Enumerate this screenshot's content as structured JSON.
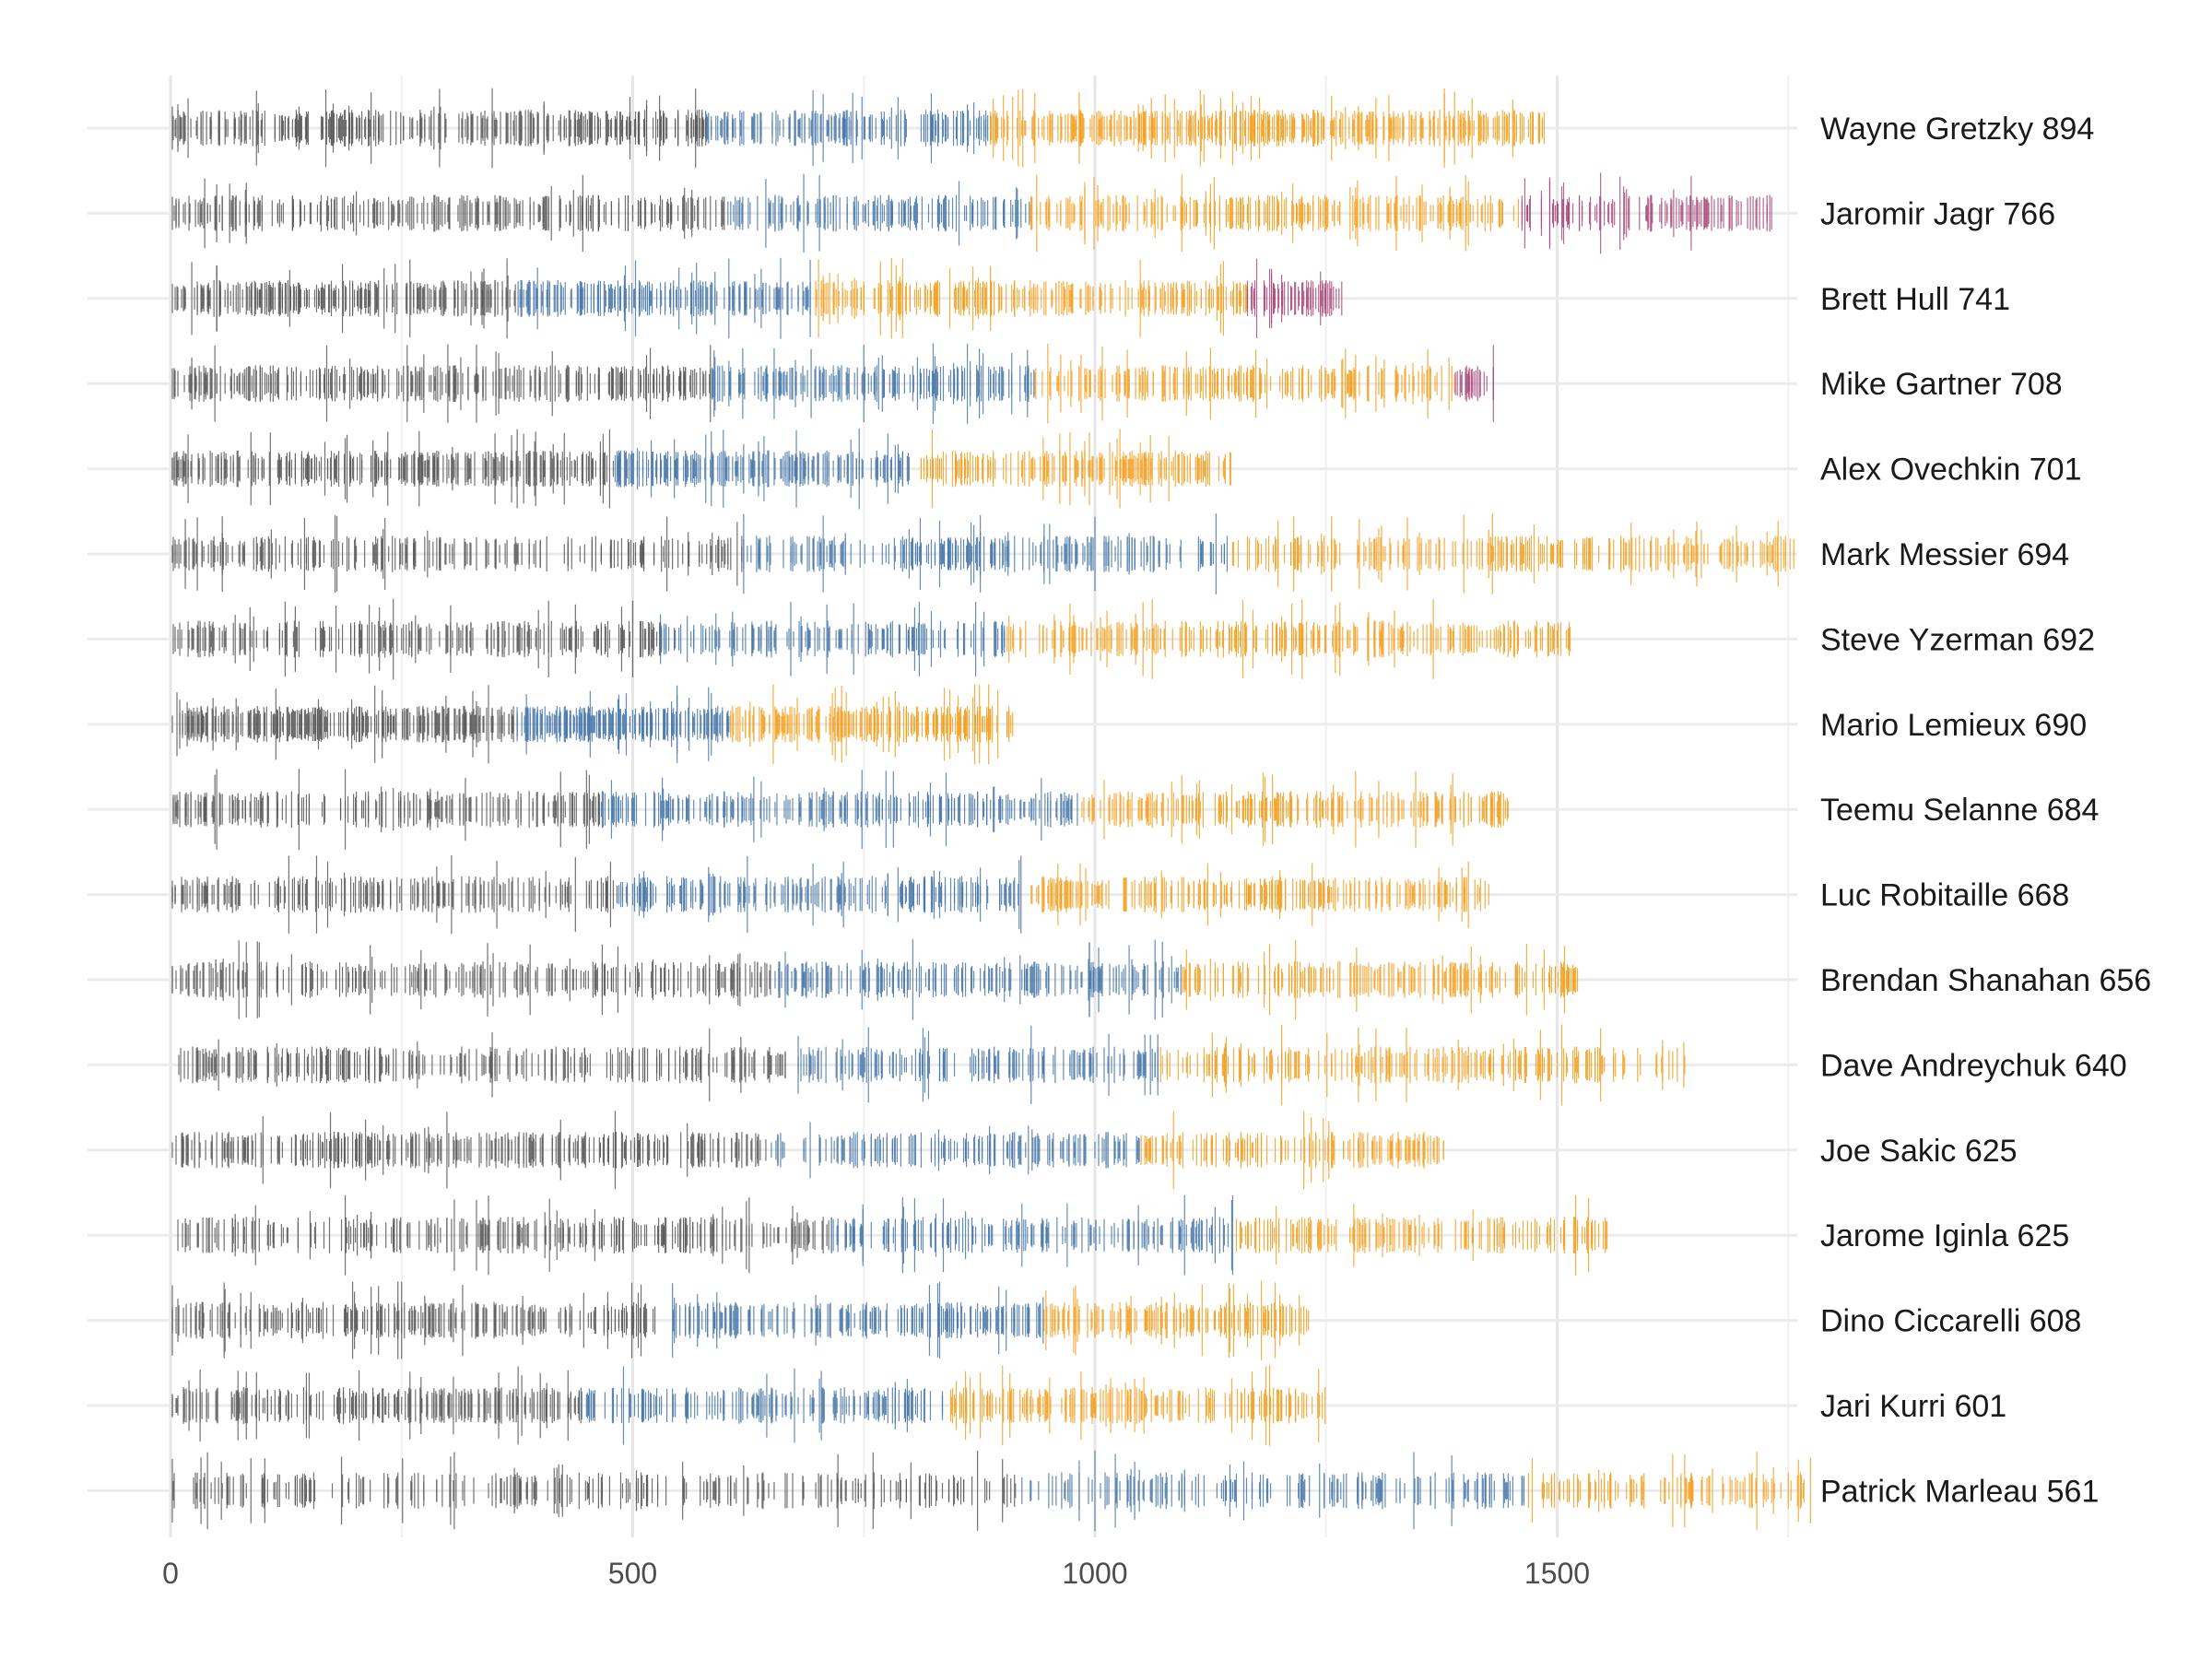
{
  "chart_data": {
    "type": "strip",
    "xlim": [
      0,
      1756
    ],
    "x_ticks": [
      0,
      500,
      1000,
      1500
    ],
    "x_minor_gridlines": [
      250,
      750,
      1250,
      1750
    ],
    "grid": true,
    "xlabel": "",
    "ylabel": "",
    "title": "",
    "color_phases": [
      "#595959",
      "#4a78a8",
      "#f2a125",
      "#a84f7c"
    ],
    "players": [
      {
        "label": "Wayne Gretzky 894",
        "goals": 894,
        "games_span": 1487,
        "phase_breaks": [
          580,
          885,
          1492
        ]
      },
      {
        "label": "Jaromir Jagr 766",
        "goals": 766,
        "games_span": 1733,
        "phase_breaks": [
          600,
          930,
          1460
        ]
      },
      {
        "label": "Brett Hull 741",
        "goals": 741,
        "games_span": 1269,
        "phase_breaks": [
          375,
          695,
          1165
        ]
      },
      {
        "label": "Mike Gartner 708",
        "goals": 708,
        "games_span": 1432,
        "phase_breaks": [
          585,
          935,
          1390
        ]
      },
      {
        "label": "Alex Ovechkin 701",
        "goals": 701,
        "games_span": 1147,
        "phase_breaks": [
          480,
          800,
          9999
        ]
      },
      {
        "label": "Mark Messier 694",
        "goals": 694,
        "games_span": 1756,
        "phase_breaks": [
          620,
          1145,
          9999
        ]
      },
      {
        "label": "Steve Yzerman 692",
        "goals": 692,
        "games_span": 1514,
        "phase_breaks": [
          530,
          905,
          9999
        ]
      },
      {
        "label": "Mario Lemieux 690",
        "goals": 690,
        "games_span": 915,
        "phase_breaks": [
          375,
          605,
          9999
        ]
      },
      {
        "label": "Teemu Selanne 684",
        "goals": 684,
        "games_span": 1451,
        "phase_breaks": [
          465,
          985,
          9999
        ]
      },
      {
        "label": "Luc Robitaille 668",
        "goals": 668,
        "games_span": 1431,
        "phase_breaks": [
          485,
          930,
          9999
        ]
      },
      {
        "label": "Brendan Shanahan 656",
        "goals": 656,
        "games_span": 1524,
        "phase_breaks": [
          650,
          1095,
          9999
        ]
      },
      {
        "label": "Dave Andreychuk 640",
        "goals": 640,
        "games_span": 1639,
        "phase_breaks": [
          670,
          1070,
          9999
        ]
      },
      {
        "label": "Joe Sakic 625",
        "goals": 625,
        "games_span": 1378,
        "phase_breaks": [
          645,
          1050,
          9999
        ]
      },
      {
        "label": "Jarome Iginla 625",
        "goals": 625,
        "games_span": 1554,
        "phase_breaks": [
          715,
          1150,
          9999
        ]
      },
      {
        "label": "Dino Ciccarelli 608",
        "goals": 608,
        "games_span": 1232,
        "phase_breaks": [
          535,
          945,
          9999
        ]
      },
      {
        "label": "Jari Kurri 601",
        "goals": 601,
        "games_span": 1251,
        "phase_breaks": [
          445,
          840,
          9999
        ]
      },
      {
        "label": "Patrick Marleau 561",
        "goals": 561,
        "games_span": 1779,
        "phase_breaks": [
          915,
          1465,
          9999
        ]
      }
    ]
  }
}
